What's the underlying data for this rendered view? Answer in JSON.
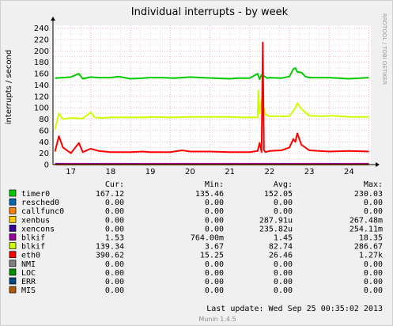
{
  "chart_data": {
    "type": "line",
    "title": "Individual interrupts - by week",
    "ylabel": "interrupts / second",
    "watermark": "RRDTOOL / TOBI OETIKER",
    "ylim": [
      0,
      245
    ],
    "yticks": [
      0,
      20,
      40,
      60,
      80,
      100,
      120,
      140,
      160,
      180,
      200,
      220,
      240
    ],
    "xlim": [
      16.55,
      24.55
    ],
    "xticks": [
      17,
      18,
      19,
      20,
      21,
      22,
      23,
      24
    ],
    "xtick_labels": [
      "17",
      "18",
      "19",
      "20",
      "21",
      "22",
      "23",
      "24"
    ],
    "grid": true,
    "series": [
      {
        "name": "timer0",
        "color": "#00cc00",
        "x": [
          16.6,
          17.0,
          17.2,
          17.3,
          17.5,
          17.7,
          18.0,
          18.2,
          18.5,
          18.8,
          19.0,
          19.3,
          19.6,
          20.0,
          20.3,
          20.6,
          21.0,
          21.2,
          21.5,
          21.7,
          21.75,
          21.8,
          21.95,
          22.0,
          22.3,
          22.5,
          22.6,
          22.65,
          22.7,
          22.8,
          22.9,
          23.0,
          23.5,
          24.0,
          24.5
        ],
        "y": [
          152,
          154,
          160,
          151,
          154,
          153,
          153,
          155,
          151,
          152,
          153,
          153,
          152,
          154,
          153,
          152,
          151,
          152,
          152,
          160,
          150,
          158,
          152,
          153,
          152,
          155,
          168,
          170,
          163,
          162,
          155,
          153,
          153,
          151,
          153
        ]
      },
      {
        "name": "xenbus",
        "color": "#ffcc00",
        "x": [
          16.6,
          24.5
        ],
        "y": [
          0,
          0
        ]
      },
      {
        "name": "xencons",
        "color": "#330099",
        "x": [
          16.6,
          24.5
        ],
        "y": [
          0,
          0
        ]
      },
      {
        "name": "blkif",
        "color": "#990099",
        "x": [
          16.6,
          24.5
        ],
        "y": [
          1.5,
          1.5
        ]
      },
      {
        "name": "blkif",
        "color": "#ccff00",
        "x": [
          16.6,
          16.7,
          16.8,
          17.0,
          17.3,
          17.5,
          17.6,
          17.8,
          18.0,
          18.5,
          18.9,
          19.0,
          19.5,
          20.0,
          20.5,
          21.0,
          21.3,
          21.5,
          21.7,
          21.72,
          21.75,
          21.8,
          21.9,
          22.0,
          22.2,
          22.5,
          22.65,
          22.7,
          22.8,
          23.0,
          23.3,
          23.6,
          24.0,
          24.5
        ],
        "y": [
          62,
          90,
          80,
          82,
          81,
          92,
          83,
          82,
          83,
          83,
          83,
          84,
          83,
          84,
          84,
          84,
          83,
          83,
          83,
          130,
          90,
          115,
          88,
          85,
          85,
          85,
          100,
          108,
          98,
          86,
          85,
          86,
          84,
          84
        ]
      },
      {
        "name": "eth0",
        "color": "#ff0000",
        "x": [
          16.6,
          16.7,
          16.8,
          17.0,
          17.2,
          17.3,
          17.5,
          17.7,
          18.0,
          18.5,
          18.8,
          19.0,
          19.5,
          19.8,
          20.0,
          20.5,
          21.0,
          21.5,
          21.7,
          21.75,
          21.8,
          21.83,
          21.86,
          21.9,
          22.0,
          22.3,
          22.5,
          22.6,
          22.65,
          22.7,
          22.8,
          22.9,
          23.0,
          23.5,
          24.0,
          24.5
        ],
        "y": [
          23,
          50,
          30,
          20,
          38,
          22,
          28,
          24,
          22,
          22,
          23,
          22,
          22,
          25,
          23,
          23,
          22,
          22,
          24,
          38,
          22,
          215,
          25,
          22,
          24,
          25,
          30,
          45,
          40,
          55,
          35,
          30,
          25,
          23,
          24,
          23
        ]
      },
      {
        "name": "resched0",
        "color": "#0066b3",
        "x": [
          16.6,
          24.5
        ],
        "y": [
          0,
          0
        ]
      },
      {
        "name": "callfunc0",
        "color": "#ff8000",
        "x": [
          16.6,
          24.5
        ],
        "y": [
          0,
          0
        ]
      },
      {
        "name": "NMI",
        "color": "#808080",
        "x": [
          16.6,
          24.5
        ],
        "y": [
          0,
          0
        ]
      },
      {
        "name": "LOC",
        "color": "#008f00",
        "x": [
          16.6,
          24.5
        ],
        "y": [
          0,
          0
        ]
      },
      {
        "name": "ERR",
        "color": "#00487d",
        "x": [
          16.6,
          24.5
        ],
        "y": [
          0,
          0
        ]
      },
      {
        "name": "MIS",
        "color": "#b35a00",
        "x": [
          16.6,
          24.5
        ],
        "y": [
          0,
          0
        ]
      }
    ]
  },
  "legend": {
    "headers": {
      "cur": "Cur:",
      "min": "Min:",
      "avg": "Avg:",
      "max": "Max:"
    },
    "rows": [
      {
        "label": "timer0",
        "color": "#00cc00",
        "cur": "167.12",
        "min": "135.46",
        "avg": "152.05",
        "max": "230.03"
      },
      {
        "label": "resched0",
        "color": "#0066b3",
        "cur": "0.00",
        "min": "0.00",
        "avg": "0.00",
        "max": "0.00"
      },
      {
        "label": "callfunc0",
        "color": "#ff8000",
        "cur": "0.00",
        "min": "0.00",
        "avg": "0.00",
        "max": "0.00"
      },
      {
        "label": "xenbus",
        "color": "#ffcc00",
        "cur": "0.00",
        "min": "0.00",
        "avg": "287.91u",
        "max": "267.48m"
      },
      {
        "label": "xencons",
        "color": "#330099",
        "cur": "0.00",
        "min": "0.00",
        "avg": "235.82u",
        "max": "254.11m"
      },
      {
        "label": "blkif",
        "color": "#990099",
        "cur": "1.53",
        "min": "764.00m",
        "avg": "1.45",
        "max": "18.35"
      },
      {
        "label": "blkif",
        "color": "#ccff00",
        "cur": "139.34",
        "min": "3.67",
        "avg": "82.74",
        "max": "286.67"
      },
      {
        "label": "eth0",
        "color": "#ff0000",
        "cur": "390.62",
        "min": "15.25",
        "avg": "26.46",
        "max": "1.27k"
      },
      {
        "label": "NMI",
        "color": "#808080",
        "cur": "0.00",
        "min": "0.00",
        "avg": "0.00",
        "max": "0.00"
      },
      {
        "label": "LOC",
        "color": "#008f00",
        "cur": "0.00",
        "min": "0.00",
        "avg": "0.00",
        "max": "0.00"
      },
      {
        "label": "ERR",
        "color": "#00487d",
        "cur": "0.00",
        "min": "0.00",
        "avg": "0.00",
        "max": "0.00"
      },
      {
        "label": "MIS",
        "color": "#b35a00",
        "cur": "0.00",
        "min": "0.00",
        "avg": "0.00",
        "max": "0.00"
      }
    ]
  },
  "footer": {
    "last_update": "Last update: Wed Sep 25 00:35:02 2013",
    "version": "Munin 1.4.5"
  }
}
